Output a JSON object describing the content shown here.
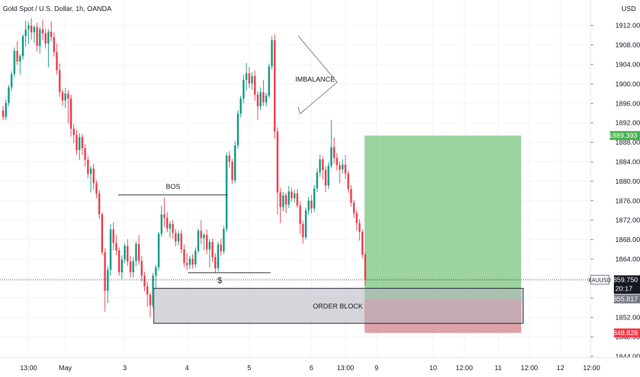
{
  "chart_data": {
    "type": "candlestick",
    "title": "Gold Spot / U.S. Dollar, 1h, OANDA",
    "symbol": "XAUUSD",
    "currency": "USD",
    "ylim": [
      1843,
      1913
    ],
    "y_ticks": [
      "1844.000",
      "1848.000",
      "1852.000",
      "1856.000",
      "1860.000",
      "1864.000",
      "1868.000",
      "1872.000",
      "1876.000",
      "1880.000",
      "1884.000",
      "1888.000",
      "1892.000",
      "1896.000",
      "1900.000",
      "1904.000",
      "1908.000",
      "1912.000"
    ],
    "y_tick_values": [
      1844,
      1848,
      1852,
      1856,
      1860,
      1864,
      1868,
      1872,
      1876,
      1880,
      1884,
      1888,
      1892,
      1896,
      1900,
      1904,
      1908,
      1912
    ],
    "x_ticks": [
      "13:00",
      "May",
      "3",
      "4",
      "5",
      "6",
      "13:00",
      "9",
      "10",
      "12:00",
      "11",
      "12:00",
      "12",
      "12:00"
    ],
    "x_tick_index": [
      9,
      22,
      43,
      65,
      87,
      109,
      121,
      132,
      152,
      163,
      175,
      186,
      197,
      208
    ],
    "grid": true,
    "candles_start": 0,
    "candles": [
      [
        1894.5,
        1895.5,
        1892.5,
        1893.2
      ],
      [
        1893.2,
        1896.8,
        1892.6,
        1896.1
      ],
      [
        1896.1,
        1899.8,
        1895.4,
        1899.3
      ],
      [
        1899.3,
        1902.6,
        1898.5,
        1902.0
      ],
      [
        1902.0,
        1907.5,
        1901.4,
        1906.8
      ],
      [
        1906.8,
        1908.8,
        1903.9,
        1904.6
      ],
      [
        1904.6,
        1906.2,
        1901.9,
        1905.7
      ],
      [
        1905.7,
        1910.2,
        1905.0,
        1909.8
      ],
      [
        1909.8,
        1913.0,
        1907.6,
        1911.2
      ],
      [
        1911.2,
        1912.8,
        1908.2,
        1912.0
      ],
      [
        1912.0,
        1913.5,
        1909.1,
        1910.6
      ],
      [
        1910.6,
        1912.0,
        1908.4,
        1911.7
      ],
      [
        1911.7,
        1912.6,
        1906.6,
        1907.8
      ],
      [
        1907.8,
        1911.8,
        1906.2,
        1911.2
      ],
      [
        1911.2,
        1913.2,
        1909.0,
        1910.4
      ],
      [
        1910.4,
        1911.4,
        1907.3,
        1908.3
      ],
      [
        1908.3,
        1911.2,
        1903.4,
        1910.7
      ],
      [
        1910.7,
        1912.8,
        1908.7,
        1909.6
      ],
      [
        1909.6,
        1910.6,
        1905.6,
        1906.5
      ],
      [
        1906.5,
        1908.3,
        1901.9,
        1902.8
      ],
      [
        1902.8,
        1904.2,
        1897.3,
        1898.3
      ],
      [
        1898.3,
        1898.9,
        1895.5,
        1896.6
      ],
      [
        1896.6,
        1899.2,
        1895.0,
        1898.0
      ],
      [
        1898.0,
        1898.8,
        1891.9,
        1897.0
      ],
      [
        1897.0,
        1897.8,
        1889.2,
        1890.8
      ],
      [
        1890.8,
        1891.8,
        1887.8,
        1889.5
      ],
      [
        1889.5,
        1890.6,
        1885.4,
        1886.4
      ],
      [
        1886.4,
        1889.9,
        1884.4,
        1889.1
      ],
      [
        1889.1,
        1889.7,
        1885.4,
        1886.8
      ],
      [
        1886.8,
        1887.6,
        1883.0,
        1884.4
      ],
      [
        1884.4,
        1885.2,
        1880.6,
        1881.5
      ],
      [
        1881.5,
        1883.2,
        1877.7,
        1882.6
      ],
      [
        1882.6,
        1883.6,
        1878.2,
        1879.6
      ],
      [
        1879.6,
        1880.2,
        1876.5,
        1877.5
      ],
      [
        1877.5,
        1878.2,
        1872.3,
        1873.2
      ],
      [
        1873.2,
        1873.6,
        1864.8,
        1865.4
      ],
      [
        1865.4,
        1866.2,
        1853.2,
        1857.5
      ],
      [
        1857.5,
        1862.5,
        1855.0,
        1861.8
      ],
      [
        1861.8,
        1871.2,
        1860.6,
        1870.1
      ],
      [
        1870.1,
        1871.6,
        1865.8,
        1867.3
      ],
      [
        1867.3,
        1868.9,
        1864.8,
        1865.8
      ],
      [
        1865.8,
        1866.4,
        1860.6,
        1861.3
      ],
      [
        1861.3,
        1864.8,
        1859.9,
        1863.9
      ],
      [
        1863.9,
        1867.3,
        1863.1,
        1866.7
      ],
      [
        1866.7,
        1868.1,
        1862.6,
        1863.5
      ],
      [
        1863.5,
        1864.7,
        1860.2,
        1861.3
      ],
      [
        1861.3,
        1864.4,
        1860.2,
        1863.6
      ],
      [
        1863.6,
        1867.7,
        1862.5,
        1867.1
      ],
      [
        1867.1,
        1868.9,
        1862.8,
        1863.6
      ],
      [
        1863.6,
        1864.7,
        1859.4,
        1860.6
      ],
      [
        1860.6,
        1861.4,
        1857.4,
        1858.4
      ],
      [
        1858.4,
        1859.3,
        1854.2,
        1856.7
      ],
      [
        1856.7,
        1857.2,
        1852.1,
        1854.5
      ],
      [
        1854.5,
        1861.2,
        1853.9,
        1860.6
      ],
      [
        1860.6,
        1862.8,
        1857.8,
        1862.3
      ],
      [
        1862.3,
        1869.6,
        1861.7,
        1869.2
      ],
      [
        1869.2,
        1874.9,
        1868.6,
        1873.2
      ],
      [
        1873.2,
        1876.6,
        1870.6,
        1872.5
      ],
      [
        1872.5,
        1873.6,
        1869.5,
        1870.3
      ],
      [
        1870.3,
        1871.8,
        1868.4,
        1871.2
      ],
      [
        1871.2,
        1872.0,
        1868.2,
        1869.4
      ],
      [
        1869.4,
        1870.2,
        1866.6,
        1867.6
      ],
      [
        1867.6,
        1869.8,
        1866.8,
        1869.2
      ],
      [
        1869.2,
        1870.0,
        1865.2,
        1866.0
      ],
      [
        1866.0,
        1867.0,
        1862.4,
        1863.2
      ],
      [
        1863.2,
        1865.2,
        1861.8,
        1862.8
      ],
      [
        1862.8,
        1864.7,
        1862.0,
        1864.1
      ],
      [
        1864.1,
        1865.0,
        1862.1,
        1862.9
      ],
      [
        1862.9,
        1866.4,
        1862.3,
        1865.7
      ],
      [
        1865.7,
        1870.3,
        1865.2,
        1869.8
      ],
      [
        1869.8,
        1872.0,
        1867.0,
        1868.3
      ],
      [
        1868.3,
        1869.4,
        1865.8,
        1869.0
      ],
      [
        1869.0,
        1870.1,
        1865.0,
        1866.0
      ],
      [
        1866.0,
        1868.1,
        1862.3,
        1867.5
      ],
      [
        1867.5,
        1868.2,
        1863.4,
        1864.4
      ],
      [
        1864.4,
        1865.2,
        1861.2,
        1862.1
      ],
      [
        1862.1,
        1867.6,
        1861.5,
        1867.0
      ],
      [
        1867.0,
        1868.2,
        1864.7,
        1865.6
      ],
      [
        1865.6,
        1870.8,
        1865.0,
        1870.2
      ],
      [
        1870.2,
        1885.9,
        1869.6,
        1885.3
      ],
      [
        1885.3,
        1886.2,
        1882.8,
        1884.0
      ],
      [
        1884.0,
        1884.6,
        1879.4,
        1880.2
      ],
      [
        1880.2,
        1888.2,
        1879.6,
        1887.4
      ],
      [
        1887.4,
        1894.6,
        1886.7,
        1893.9
      ],
      [
        1893.9,
        1897.6,
        1893.1,
        1897.0
      ],
      [
        1897.0,
        1901.9,
        1896.0,
        1900.8
      ],
      [
        1900.8,
        1904.3,
        1898.6,
        1902.2
      ],
      [
        1902.2,
        1903.5,
        1899.1,
        1900.1
      ],
      [
        1900.1,
        1902.4,
        1898.8,
        1901.6
      ],
      [
        1901.6,
        1902.8,
        1896.5,
        1897.8
      ],
      [
        1897.8,
        1898.5,
        1892.6,
        1895.4
      ],
      [
        1895.4,
        1899.3,
        1894.7,
        1898.3
      ],
      [
        1898.3,
        1900.8,
        1895.5,
        1896.2
      ],
      [
        1896.2,
        1898.2,
        1895.4,
        1897.6
      ],
      [
        1897.6,
        1904.2,
        1897.1,
        1903.6
      ],
      [
        1903.6,
        1909.8,
        1902.9,
        1909.0
      ],
      [
        1909.0,
        1910.2,
        1888.7,
        1890.2
      ],
      [
        1890.2,
        1891.1,
        1873.2,
        1877.7
      ],
      [
        1877.7,
        1878.6,
        1871.4,
        1874.7
      ],
      [
        1874.7,
        1877.8,
        1873.8,
        1877.1
      ],
      [
        1877.1,
        1877.6,
        1873.4,
        1875.2
      ],
      [
        1875.2,
        1879.0,
        1874.5,
        1877.9
      ],
      [
        1877.9,
        1878.6,
        1875.8,
        1876.5
      ],
      [
        1876.5,
        1878.2,
        1875.6,
        1877.5
      ],
      [
        1877.5,
        1878.4,
        1874.6,
        1875.0
      ],
      [
        1875.0,
        1875.8,
        1869.1,
        1871.2
      ],
      [
        1871.2,
        1871.9,
        1867.2,
        1868.5
      ],
      [
        1868.5,
        1874.6,
        1868.0,
        1874.0
      ],
      [
        1874.0,
        1876.8,
        1873.1,
        1876.0
      ],
      [
        1876.0,
        1877.2,
        1873.4,
        1874.4
      ],
      [
        1874.4,
        1879.2,
        1873.7,
        1878.5
      ],
      [
        1878.5,
        1882.6,
        1877.8,
        1881.8
      ],
      [
        1881.8,
        1885.5,
        1880.9,
        1884.5
      ],
      [
        1884.5,
        1885.2,
        1880.3,
        1882.3
      ],
      [
        1882.3,
        1883.1,
        1877.8,
        1879.1
      ],
      [
        1879.1,
        1883.9,
        1878.4,
        1883.2
      ],
      [
        1883.2,
        1892.6,
        1882.6,
        1887.0
      ],
      [
        1887.0,
        1889.0,
        1883.7,
        1884.8
      ],
      [
        1884.8,
        1885.8,
        1882.2,
        1883.3
      ],
      [
        1883.3,
        1884.0,
        1879.6,
        1882.4
      ],
      [
        1882.4,
        1884.5,
        1881.6,
        1883.4
      ],
      [
        1883.4,
        1885.4,
        1880.5,
        1881.6
      ],
      [
        1881.6,
        1882.2,
        1877.6,
        1878.4
      ],
      [
        1878.4,
        1879.2,
        1874.8,
        1875.6
      ],
      [
        1875.6,
        1876.2,
        1872.4,
        1873.4
      ],
      [
        1873.4,
        1874.0,
        1869.9,
        1871.4
      ],
      [
        1871.4,
        1872.2,
        1867.8,
        1869.6
      ],
      [
        1869.6,
        1870.1,
        1864.2,
        1864.9
      ],
      [
        1864.9,
        1865.4,
        1858.6,
        1859.75
      ]
    ],
    "bullish_color": "#089981",
    "bearish_color": "#f23645",
    "annotations": {
      "bos_label": "BOS",
      "dollar_label": "$",
      "imbalance_label": "IMBALANCE",
      "order_block_label": "ORDER BLOCK",
      "bos_level": 1877.2,
      "sweep_level": 1861.2,
      "order_block_range": [
        1850.8,
        1858.0
      ],
      "profit_zone": [
        1855.817,
        1889.393
      ],
      "loss_zone": [
        1848.828,
        1855.817
      ]
    },
    "price_tags": [
      {
        "id": "target",
        "label": "1889.393",
        "color": "#4caf50",
        "value": 1889.393
      },
      {
        "id": "symbol",
        "label": "XAUUSD",
        "color": "#ffffff",
        "value": 1859.75
      },
      {
        "id": "last",
        "label": "1859.750",
        "color": "#131722",
        "value": 1859.75
      },
      {
        "id": "countdown",
        "label": "20:17",
        "color": "#131722"
      },
      {
        "id": "entry",
        "label": "1855.817",
        "color": "#787b86",
        "value": 1855.817
      },
      {
        "id": "stop",
        "label": "1848.828",
        "color": "#f23645",
        "value": 1848.828
      }
    ]
  }
}
